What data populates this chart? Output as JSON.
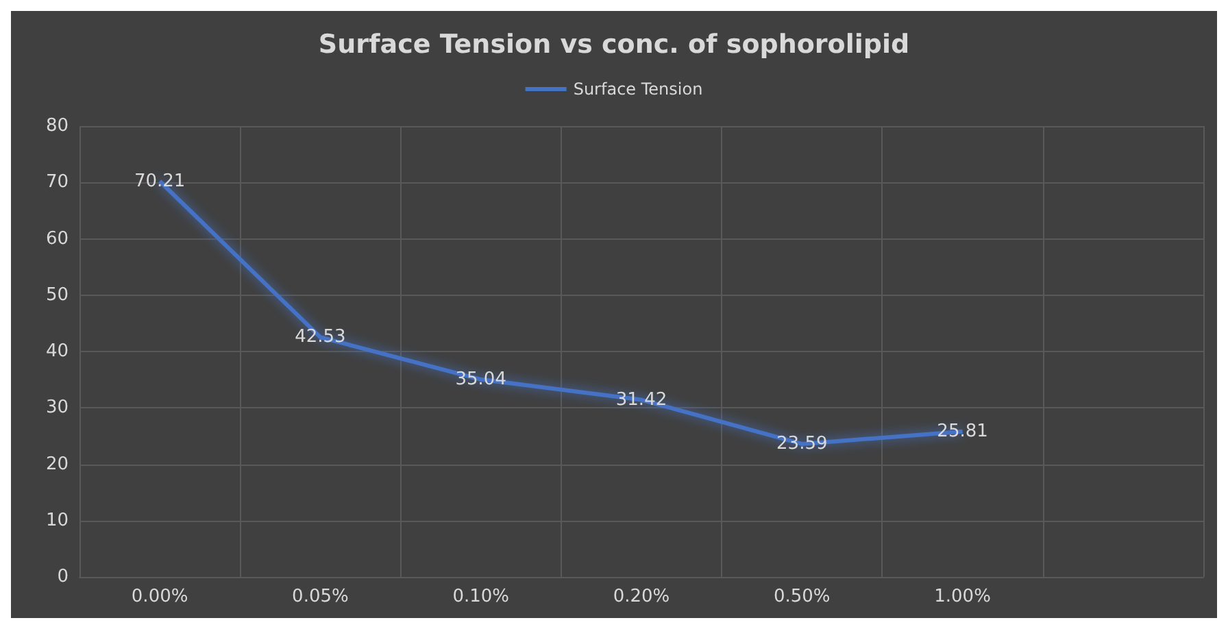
{
  "chart_data": {
    "type": "line",
    "title": "Surface Tension vs conc. of sophorolipid",
    "categories": [
      "0.00%",
      "0.05%",
      "0.10%",
      "0.20%",
      "0.50%",
      "1.00%",
      null
    ],
    "series": [
      {
        "name": "Surface Tension",
        "color": "#4472c4",
        "values": [
          70.21,
          42.53,
          35.04,
          31.42,
          23.59,
          25.81,
          null
        ]
      }
    ],
    "ylim": [
      0,
      80
    ],
    "yticks": [
      0,
      10,
      20,
      30,
      40,
      50,
      60,
      70,
      80
    ],
    "grid": true,
    "legend": "top",
    "data_labels": true,
    "marker": "none",
    "line_style": "solid"
  }
}
